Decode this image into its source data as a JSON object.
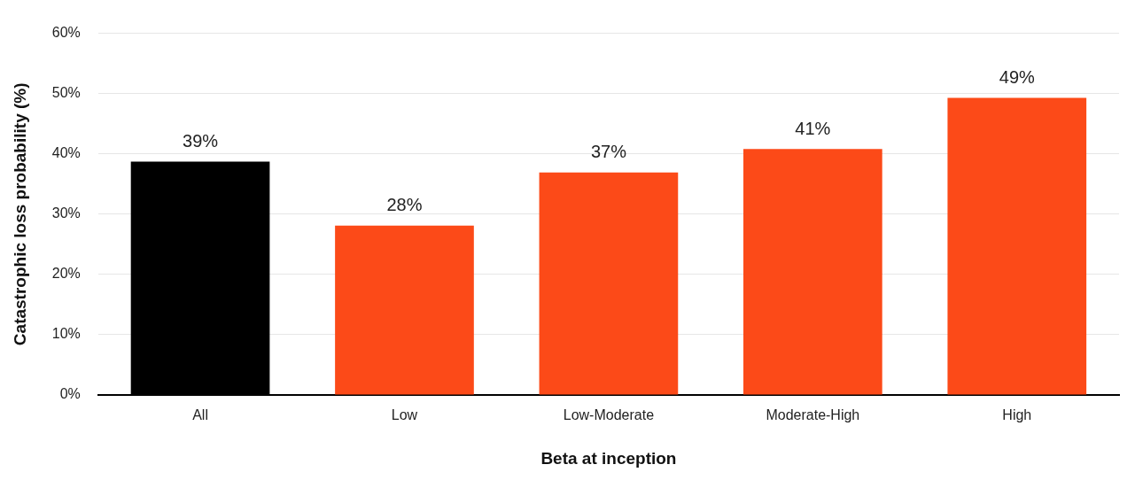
{
  "chart_data": {
    "type": "bar",
    "xlabel": "Beta at inception",
    "ylabel": "Catastrophic loss probability (%)",
    "categories": [
      "All",
      "Low",
      "Low-Moderate",
      "Moderate-High",
      "High"
    ],
    "values": [
      38.7,
      28.1,
      36.9,
      40.8,
      49.3
    ],
    "colors": [
      "#000000",
      "#fc4a18",
      "#fc4a18",
      "#fc4a18",
      "#fc4a18"
    ],
    "value_labels": [
      "39%",
      "28%",
      "37%",
      "41%",
      "49%"
    ],
    "ylim": [
      0,
      60
    ],
    "yticks": [
      {
        "value": 0,
        "label": "0%"
      },
      {
        "value": 10,
        "label": "10%"
      },
      {
        "value": 20,
        "label": "20%"
      },
      {
        "value": 30,
        "label": "30%"
      },
      {
        "value": 40,
        "label": "40%"
      },
      {
        "value": 50,
        "label": "50%"
      },
      {
        "value": 60,
        "label": "60%"
      }
    ],
    "grid": "y",
    "legend": false
  }
}
